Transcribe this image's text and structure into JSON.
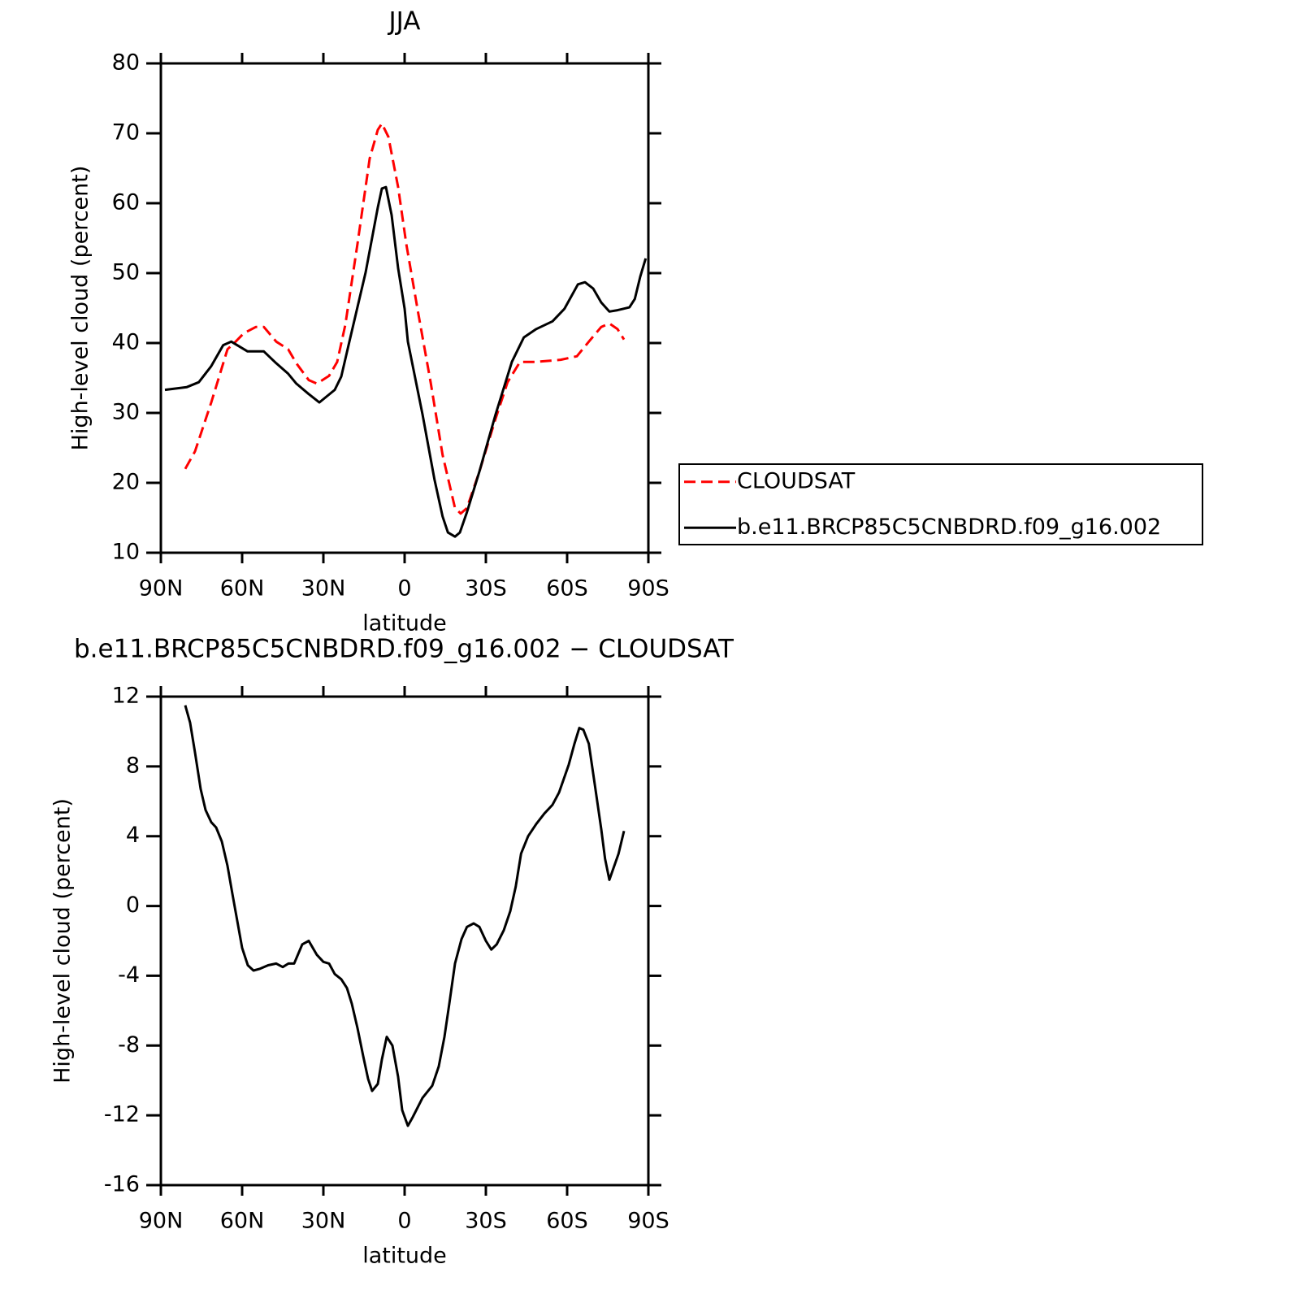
{
  "chart_data": [
    {
      "type": "line",
      "title": "JJA",
      "xlabel": "latitude",
      "ylabel": "High-level cloud (percent)",
      "xlim": [
        90,
        -90
      ],
      "xticks": [
        {
          "value": 90,
          "label": "90N"
        },
        {
          "value": 60,
          "label": "60N"
        },
        {
          "value": 30,
          "label": "30N"
        },
        0,
        {
          "value": -30,
          "label": "30S"
        },
        {
          "value": -60,
          "label": "60S"
        },
        {
          "value": -90,
          "label": "90S"
        }
      ],
      "ylim": [
        10,
        80
      ],
      "yticks": [
        10,
        20,
        30,
        40,
        50,
        60,
        70,
        80
      ],
      "legend": "right",
      "series": [
        {
          "name": "CLOUDSAT",
          "color": "#ff0000",
          "dash": "dashed",
          "x": [
            81,
            77.4,
            71.4,
            65.4,
            62.4,
            59.4,
            54.9,
            52,
            47.4,
            43,
            40,
            35.4,
            32.4,
            27.9,
            24.9,
            21.9,
            17.4,
            12.9,
            9.9,
            8.4,
            6,
            2.4,
            -0.6,
            -5,
            -9.6,
            -14,
            -18.6,
            -20.7,
            -23,
            -27.6,
            -33.6,
            -38,
            -42.6,
            -48.6,
            -57.6,
            -63.6,
            -68,
            -72.6,
            -75.6,
            -78.6,
            -81
          ],
          "values": [
            22,
            24.5,
            31.5,
            39.1,
            40.2,
            41.4,
            42.3,
            42.3,
            40.2,
            39.1,
            37.1,
            34.7,
            34.2,
            35.3,
            37.3,
            42.6,
            54.2,
            66.4,
            70.5,
            71.4,
            69.5,
            62.3,
            54.2,
            44.3,
            34.4,
            24,
            16.4,
            15.6,
            16.4,
            21.6,
            29.2,
            34.4,
            37.3,
            37.3,
            37.6,
            38.1,
            40.2,
            42.3,
            42.8,
            42,
            40.5
          ]
        },
        {
          "name": "b.e11.BRCP85C5CNBDRD.f09_g16.002",
          "color": "#000000",
          "x": [
            88.5,
            80.4,
            76,
            71.4,
            67,
            64,
            58,
            52,
            47.4,
            43,
            40,
            35.4,
            31.5,
            25.8,
            23.4,
            20.4,
            14.4,
            9.9,
            8.4,
            6.9,
            4.8,
            2.4,
            0,
            -1.2,
            -6.6,
            -11,
            -14,
            -16,
            -18.6,
            -20.4,
            -23,
            -27.6,
            -33.6,
            -39.6,
            -44,
            -48.6,
            -54.6,
            -59,
            -64,
            -66.6,
            -69.6,
            -72.6,
            -75.6,
            -78.6,
            -83,
            -85,
            -87,
            -89
          ],
          "values": [
            33.3,
            33.7,
            34.4,
            36.7,
            39.7,
            40.2,
            38.8,
            38.8,
            37.1,
            35.6,
            34.2,
            32.7,
            31.5,
            33.3,
            35.2,
            40.2,
            50.1,
            59.4,
            62.1,
            62.3,
            58.3,
            50.7,
            44.9,
            40.2,
            29.8,
            20.5,
            15.2,
            12.9,
            12.3,
            12.9,
            15.8,
            21.6,
            29.8,
            37.3,
            40.8,
            42,
            43.1,
            44.9,
            48.4,
            48.7,
            47.8,
            45.8,
            44.5,
            44.7,
            45.1,
            46.3,
            49.5,
            52.1
          ]
        }
      ]
    },
    {
      "type": "line",
      "title": "b.e11.BRCP85C5CNBDRD.f09_g16.002 − CLOUDSAT",
      "xlabel": "latitude",
      "ylabel": "High-level cloud (percent)",
      "xlim": [
        90,
        -90
      ],
      "xticks": [
        {
          "value": 90,
          "label": "90N"
        },
        {
          "value": 60,
          "label": "60N"
        },
        {
          "value": 30,
          "label": "30N"
        },
        0,
        {
          "value": -30,
          "label": "30S"
        },
        {
          "value": -60,
          "label": "60S"
        },
        {
          "value": -90,
          "label": "90S"
        }
      ],
      "ylim": [
        -16,
        12
      ],
      "yticks": [
        -16,
        -12,
        -8,
        -4,
        0,
        4,
        8,
        12
      ],
      "series": [
        {
          "color": "#000000",
          "x": [
            81,
            79.2,
            77.4,
            75.3,
            73.5,
            71.4,
            69.6,
            67.5,
            65.4,
            63.6,
            60,
            57.9,
            55.8,
            53.4,
            50.4,
            47.4,
            45,
            42.9,
            40.8,
            37.8,
            35.4,
            32.4,
            30,
            27.9,
            25.8,
            23.4,
            21.3,
            19.5,
            17.4,
            15.3,
            13.5,
            12,
            9.9,
            8.4,
            6.6,
            4.5,
            2.4,
            0.9,
            -1.2,
            -3,
            -6.6,
            -10.2,
            -12.6,
            -14.7,
            -16.5,
            -18.6,
            -21,
            -23,
            -25.5,
            -27.6,
            -30,
            -32,
            -34,
            -36.6,
            -39,
            -41,
            -43,
            -45.6,
            -48.6,
            -51.6,
            -54.6,
            -57,
            -60.6,
            -62.7,
            -64.5,
            -66,
            -68,
            -70,
            -72.6,
            -74,
            -75.6,
            -79,
            -81
          ],
          "values": [
            11.5,
            10.5,
            8.8,
            6.7,
            5.5,
            4.8,
            4.5,
            3.7,
            2.3,
            0.7,
            -2.4,
            -3.4,
            -3.7,
            -3.6,
            -3.4,
            -3.3,
            -3.5,
            -3.3,
            -3.3,
            -2.2,
            -2,
            -2.8,
            -3.2,
            -3.3,
            -3.9,
            -4.2,
            -4.7,
            -5.6,
            -7,
            -8.6,
            -9.9,
            -10.6,
            -10.2,
            -8.8,
            -7.5,
            -8,
            -9.8,
            -11.7,
            -12.6,
            -12.1,
            -11,
            -10.3,
            -9.2,
            -7.5,
            -5.6,
            -3.3,
            -1.9,
            -1.2,
            -1,
            -1.2,
            -2,
            -2.5,
            -2.2,
            -1.4,
            -0.3,
            1.1,
            3,
            4,
            4.7,
            5.3,
            5.8,
            6.5,
            8.1,
            9.3,
            10.2,
            10.1,
            9.3,
            7.2,
            4.4,
            2.7,
            1.5,
            3,
            4.3
          ]
        }
      ]
    }
  ]
}
